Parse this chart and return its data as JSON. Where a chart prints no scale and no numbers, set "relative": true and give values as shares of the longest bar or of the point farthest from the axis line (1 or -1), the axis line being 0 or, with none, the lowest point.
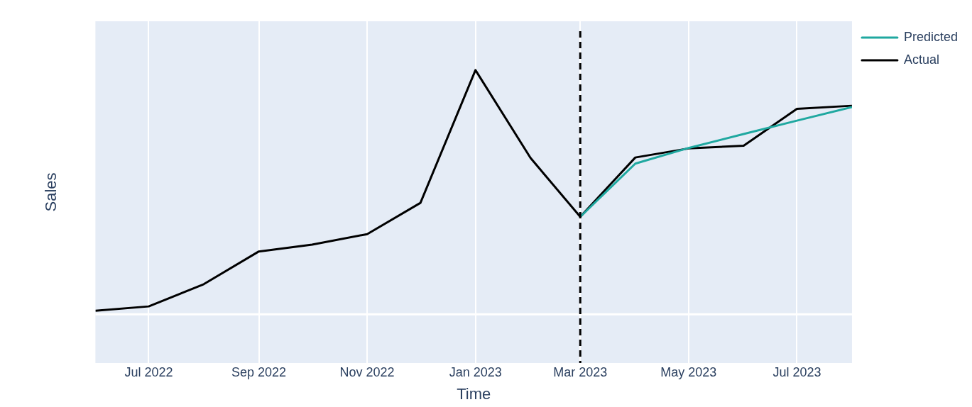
{
  "chart_data": {
    "type": "line",
    "xlabel": "Time",
    "ylabel": "Sales",
    "relative": true,
    "grid": "x",
    "legend": "top right",
    "line_style": "solid",
    "marker": "none",
    "xlim": [
      "2022-06",
      "2023-08"
    ],
    "xticks": [
      {
        "value": "2022-07",
        "label": "Jul 2022"
      },
      {
        "value": "2022-09",
        "label": "Sep 2022"
      },
      {
        "value": "2022-11",
        "label": "Nov 2022"
      },
      {
        "value": "2023-01",
        "label": "Jan 2023"
      },
      {
        "value": "2023-03",
        "label": "Mar 2023"
      },
      {
        "value": "2023-05",
        "label": "May 2023"
      },
      {
        "value": "2023-07",
        "label": "Jul 2023"
      }
    ],
    "series": [
      {
        "name": "Predicted",
        "color": "#1fa8a0",
        "x": [
          "2023-03",
          "2023-04",
          "2023-05",
          "2023-06",
          "2023-07",
          "2023-08"
        ],
        "values": [
          0.399,
          0.617,
          0.681,
          0.738,
          0.793,
          0.849
        ]
      },
      {
        "name": "Actual",
        "color": "#000000",
        "x": [
          "2022-06",
          "2022-07",
          "2022-08",
          "2022-09",
          "2022-10",
          "2022-11",
          "2022-12",
          "2023-01",
          "2023-02",
          "2023-03",
          "2023-04",
          "2023-05",
          "2023-06",
          "2023-07",
          "2023-08"
        ],
        "values": [
          0.014,
          0.032,
          0.123,
          0.257,
          0.285,
          0.328,
          0.456,
          1,
          0.64,
          0.399,
          0.642,
          0.679,
          0.69,
          0.841,
          0.854
        ]
      }
    ],
    "ref_lines": [
      {
        "axis": "x",
        "value": "2023-03",
        "color": "#000000",
        "line_style": "dashed"
      }
    ]
  }
}
